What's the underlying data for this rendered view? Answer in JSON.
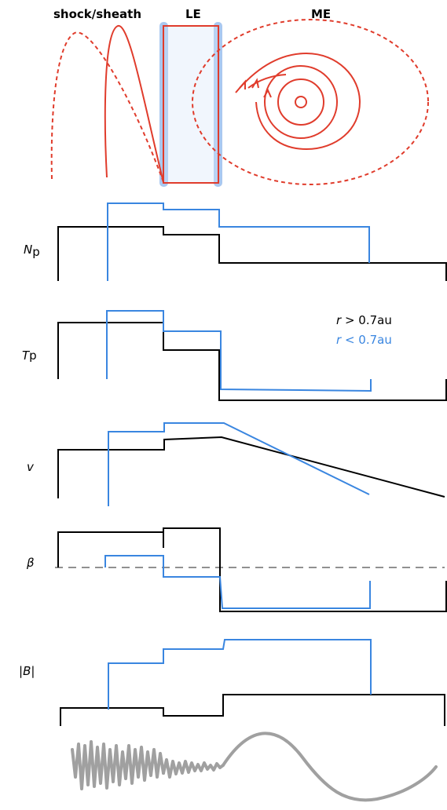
{
  "regions": {
    "shock_sheath": "shock/sheath",
    "le": "LE",
    "me": "ME"
  },
  "panels": {
    "np": {
      "label_main": "N",
      "label_sub": "p"
    },
    "tp": {
      "label_main": "T",
      "label_rest": "p"
    },
    "v": {
      "label": "v"
    },
    "beta": {
      "label": "β"
    },
    "b": {
      "label_left": "|",
      "label_main": "B",
      "label_right": "|"
    }
  },
  "legend": {
    "black": {
      "var": "r",
      "rest": " > 0.7au",
      "color": "#000000"
    },
    "blue": {
      "var": "r",
      "rest": " < 0.7au",
      "color": "#3a86e0"
    }
  },
  "colors": {
    "black_trace": "#000000",
    "blue_trace": "#3a86e0",
    "field_lines": "#e03c2c",
    "le_highlight": "#a9c8f0",
    "oscillation": "#a0a0a0",
    "beta_reference": "#909090"
  }
}
